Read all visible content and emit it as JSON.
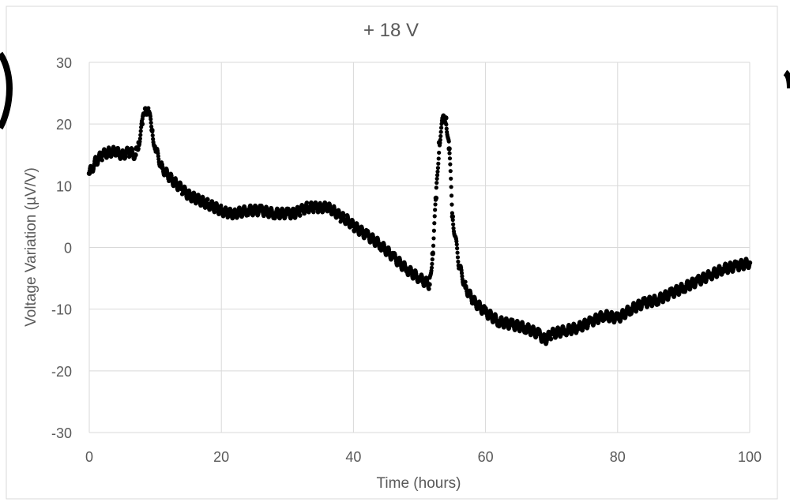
{
  "chart_data": {
    "type": "scatter",
    "title": "+ 18 V",
    "xlabel": "Time (hours)",
    "ylabel": "Voltage Variation (µV/V)",
    "xlim": [
      0,
      100
    ],
    "ylim": [
      -30,
      30
    ],
    "x_ticks": [
      "0",
      "20",
      "40",
      "60",
      "80",
      "100"
    ],
    "y_ticks": [
      "30",
      "20",
      "10",
      "0",
      "-10",
      "-20",
      "-30"
    ],
    "grid": true,
    "legend": "none",
    "marker_color": "#000000",
    "gridline_color": "#d9d9d9",
    "series": [
      {
        "x": [
          0,
          1,
          2,
          3,
          4,
          5,
          6,
          7,
          7.5,
          8,
          8.5,
          9,
          9.5,
          10,
          11,
          12,
          13,
          14,
          15,
          16,
          17,
          18,
          19,
          20,
          21,
          22,
          24,
          26,
          28,
          30,
          31,
          32,
          33,
          34,
          35,
          36,
          37,
          38,
          39,
          40,
          42,
          44,
          46,
          48,
          50,
          51.5,
          52,
          52.5,
          53,
          53.5,
          54,
          54.5,
          55,
          56,
          57,
          58,
          60,
          62,
          64,
          66,
          68,
          69,
          70,
          72,
          74,
          76,
          78,
          80,
          82,
          84,
          86,
          88,
          90,
          92,
          94,
          96,
          98,
          100
        ],
        "y": [
          12,
          14,
          15,
          15.5,
          15.5,
          15,
          15.5,
          15,
          17,
          20,
          22.5,
          22,
          19,
          16,
          13,
          11.5,
          10.5,
          9.5,
          8.5,
          8,
          7.5,
          7,
          6.5,
          6,
          5.5,
          5.5,
          6,
          6,
          5.5,
          5.5,
          5.5,
          6,
          6.5,
          6.5,
          6.5,
          6.5,
          6,
          5,
          4.5,
          3.5,
          2,
          0.5,
          -1.5,
          -3.5,
          -5,
          -6,
          -1,
          8,
          17,
          20.5,
          21,
          16,
          5,
          -3,
          -6.5,
          -8.5,
          -10.5,
          -12,
          -12.5,
          -13,
          -14,
          -15,
          -14,
          -13.5,
          -13,
          -12,
          -11,
          -11.5,
          -10,
          -9,
          -8.5,
          -7.5,
          -6.5,
          -5.5,
          -4.5,
          -3.5,
          -3,
          -2.5
        ]
      }
    ]
  }
}
